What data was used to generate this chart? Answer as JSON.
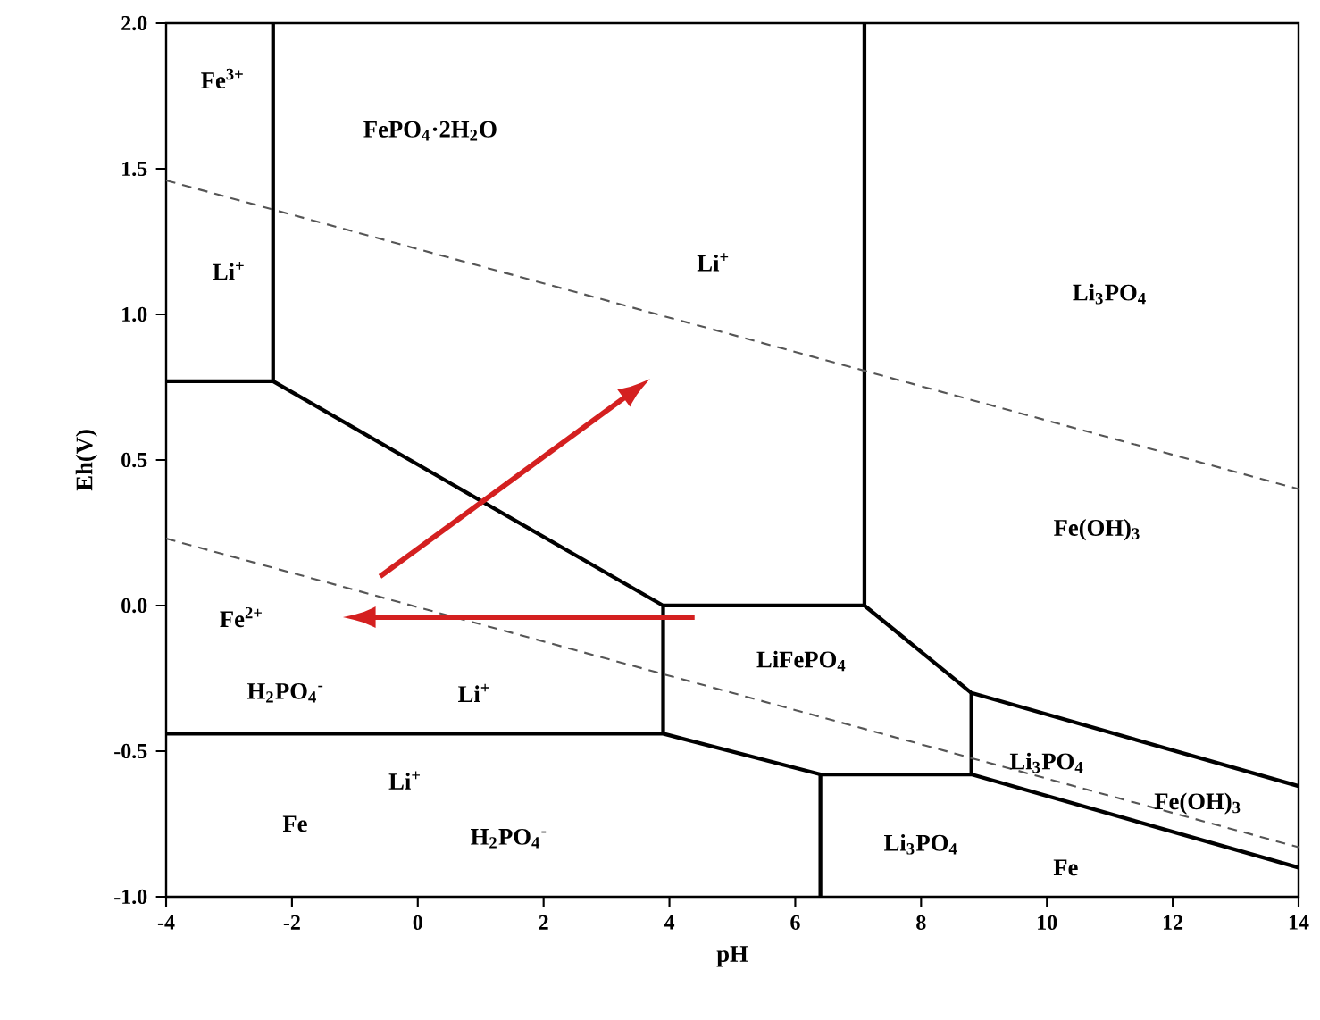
{
  "chart_data": {
    "type": "line",
    "xlabel": "pH",
    "ylabel": "Eh(V)",
    "xlim": [
      -4,
      14
    ],
    "ylim": [
      -1,
      2
    ],
    "xticks": [
      -4,
      -2,
      0,
      2,
      4,
      6,
      8,
      10,
      12,
      14
    ],
    "yticks": [
      {
        "value": -1,
        "label": "-1.0"
      },
      {
        "value": -0.5,
        "label": "-0.5"
      },
      {
        "value": 0,
        "label": "0.0"
      },
      {
        "value": 0.5,
        "label": "0.5"
      },
      {
        "value": 1,
        "label": "1.0"
      },
      {
        "value": 1.5,
        "label": "1.5"
      },
      {
        "value": 2,
        "label": "2.0"
      }
    ],
    "grid": false,
    "line_style": "solid",
    "series": [
      {
        "color": "#000000",
        "x": [
          -4,
          -2.3,
          3.9,
          7.1,
          8.8,
          14
        ],
        "values": [
          0.77,
          0.77,
          0,
          0,
          -0.3,
          -0.62
        ]
      },
      {
        "color": "#000000",
        "x": [
          -4,
          3.9,
          6.4,
          8.8,
          14
        ],
        "values": [
          -0.44,
          -0.44,
          -0.58,
          -0.58,
          -0.9
        ]
      },
      {
        "color": "#000000",
        "x": [
          -2.3,
          -2.3
        ],
        "values": [
          2,
          0.77
        ]
      },
      {
        "color": "#000000",
        "x": [
          7.1,
          7.1
        ],
        "values": [
          0,
          2
        ]
      },
      {
        "color": "#000000",
        "x": [
          3.9,
          3.9
        ],
        "values": [
          0,
          -0.44
        ]
      },
      {
        "color": "#000000",
        "x": [
          8.8,
          8.8
        ],
        "values": [
          -0.3,
          -0.58
        ]
      },
      {
        "color": "#000000",
        "x": [
          6.4,
          6.4
        ],
        "values": [
          -0.58,
          -1
        ]
      },
      {
        "color": "#555555",
        "line_style": "dashed",
        "x": [
          -4,
          14
        ],
        "values": [
          1.46,
          0.4
        ]
      },
      {
        "color": "#555555",
        "line_style": "dashed",
        "x": [
          -4,
          14
        ],
        "values": [
          0.23,
          -0.83
        ]
      }
    ],
    "annotations": [
      "Fe$^{3+}$",
      "FePO$_{4}$·2H$_{2}$O",
      "Li$^{+}$",
      "Li$^{+}$",
      "Li$_{3}$PO$_{4}$",
      "Fe(OH)$_{3}$",
      "Fe$^{2+}$",
      "H$_{2}$PO$_{4}$$^{-}$",
      "Li$^{+}$",
      "LiFePO$_{4}$",
      "Li$_{3}$PO$_{4}$",
      "Fe(OH)$_{3}$",
      "Li$^{+}$",
      "Fe",
      "H$_{2}$PO$_{4}$$^{-}$",
      "Li$_{3}$PO$_{4}$",
      "Fe"
    ]
  }
}
